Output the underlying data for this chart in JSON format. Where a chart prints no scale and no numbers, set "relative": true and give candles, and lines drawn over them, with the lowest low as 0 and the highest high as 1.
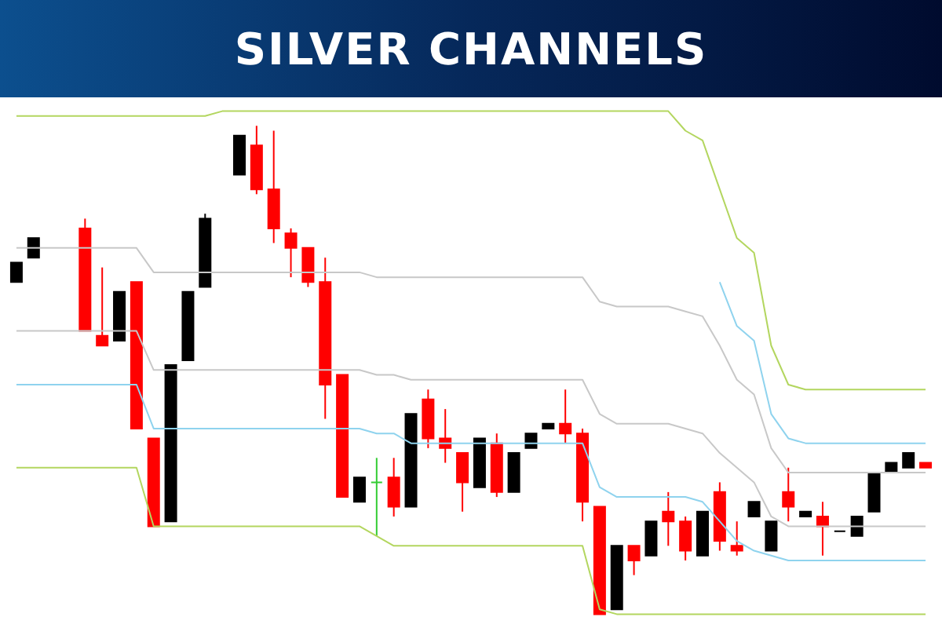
{
  "chart_data": {
    "type": "candlestick",
    "title": "SILVER CHANNELS",
    "relative": true,
    "categories": [
      null,
      null,
      null,
      null,
      null,
      null,
      null,
      null,
      null,
      null,
      null,
      null,
      null,
      null,
      null,
      null,
      null,
      null,
      null,
      null,
      null,
      null,
      null,
      null,
      null,
      null,
      null,
      null,
      null,
      null,
      null,
      null,
      null,
      null,
      null,
      null,
      null,
      null,
      null,
      null,
      null,
      null,
      null,
      null,
      null,
      null,
      null,
      null,
      null,
      null,
      null,
      null,
      null,
      null
    ],
    "ohlc": [
      [
        0.68,
        0.72,
        0.68,
        0.72
      ],
      [
        0.73,
        0.77,
        0.73,
        0.77
      ],
      null,
      null,
      [
        0.79,
        0.81,
        0.58,
        0.58
      ],
      [
        0.57,
        0.71,
        0.55,
        0.55
      ],
      [
        0.56,
        0.66,
        0.56,
        0.66
      ],
      [
        0.68,
        0.68,
        0.38,
        0.38
      ],
      [
        0.36,
        0.36,
        0.18,
        0.18
      ],
      [
        0.19,
        0.51,
        0.19,
        0.51
      ],
      [
        0.52,
        0.66,
        0.52,
        0.66
      ],
      [
        0.67,
        0.82,
        0.67,
        0.81
      ],
      null,
      [
        0.9,
        0.98,
        0.9,
        0.98
      ],
      [
        0.96,
        1.0,
        0.86,
        0.87
      ],
      [
        0.87,
        0.99,
        0.76,
        0.79
      ],
      [
        0.78,
        0.79,
        0.69,
        0.75
      ],
      [
        0.75,
        0.75,
        0.67,
        0.68
      ],
      [
        0.68,
        0.73,
        0.4,
        0.47
      ],
      [
        0.49,
        0.49,
        0.24,
        0.24
      ],
      [
        0.23,
        0.28,
        0.23,
        0.28
      ],
      [
        0.27,
        0.32,
        0.16,
        0.27
      ],
      [
        0.28,
        0.32,
        0.2,
        0.22
      ],
      [
        0.22,
        0.41,
        0.22,
        0.41
      ],
      [
        0.44,
        0.46,
        0.34,
        0.36
      ],
      [
        0.36,
        0.42,
        0.31,
        0.34
      ],
      [
        0.33,
        0.33,
        0.21,
        0.27
      ],
      [
        0.26,
        0.36,
        0.26,
        0.36
      ],
      [
        0.35,
        0.37,
        0.24,
        0.25
      ],
      [
        0.25,
        0.33,
        0.25,
        0.33
      ],
      [
        0.34,
        0.37,
        0.34,
        0.37
      ],
      [
        0.38,
        0.39,
        0.38,
        0.39
      ],
      [
        0.39,
        0.46,
        0.35,
        0.37
      ],
      [
        0.37,
        0.38,
        0.19,
        0.23
      ],
      [
        0.22,
        0.22,
        0.0,
        0.0
      ],
      [
        0.01,
        0.14,
        0.01,
        0.14
      ],
      [
        0.14,
        0.14,
        0.08,
        0.11
      ],
      [
        0.12,
        0.19,
        0.12,
        0.19
      ],
      [
        0.21,
        0.25,
        0.14,
        0.19
      ],
      [
        0.19,
        0.2,
        0.11,
        0.13
      ],
      [
        0.12,
        0.21,
        0.12,
        0.21
      ],
      [
        0.25,
        0.27,
        0.13,
        0.15
      ],
      [
        0.14,
        0.19,
        0.12,
        0.13
      ],
      [
        0.2,
        0.23,
        0.2,
        0.23
      ],
      [
        0.13,
        0.19,
        0.13,
        0.19
      ],
      [
        0.25,
        0.3,
        0.19,
        0.22
      ],
      [
        0.2,
        0.21,
        0.2,
        0.21
      ],
      [
        0.2,
        0.23,
        0.12,
        0.18
      ],
      [
        0.17,
        0.17,
        0.17,
        0.17
      ],
      [
        0.16,
        0.2,
        0.16,
        0.2
      ],
      [
        0.21,
        0.29,
        0.21,
        0.29
      ],
      [
        0.29,
        0.31,
        0.29,
        0.31
      ],
      [
        0.3,
        0.33,
        0.3,
        0.33
      ],
      [
        0.31,
        0.31,
        0.3,
        0.3
      ]
    ],
    "colors": [
      "#000000",
      "#000000",
      null,
      null,
      "#ff0000",
      "#ff0000",
      "#000000",
      "#ff0000",
      "#ff0000",
      "#000000",
      "#000000",
      "#000000",
      null,
      "#000000",
      "#ff0000",
      "#ff0000",
      "#ff0000",
      "#ff0000",
      "#ff0000",
      "#ff0000",
      "#000000",
      "#33cc33",
      "#ff0000",
      "#000000",
      "#ff0000",
      "#ff0000",
      "#ff0000",
      "#000000",
      "#ff0000",
      "#000000",
      "#000000",
      "#000000",
      "#ff0000",
      "#ff0000",
      "#ff0000",
      "#000000",
      "#ff0000",
      "#000000",
      "#ff0000",
      "#ff0000",
      "#000000",
      "#ff0000",
      "#ff0000",
      "#000000",
      "#000000",
      "#ff0000",
      "#000000",
      "#ff0000",
      "#000000",
      "#000000",
      "#000000",
      "#000000",
      "#000000",
      "#ff0000"
    ],
    "series": [
      {
        "type": "line",
        "color": "#b3d65f",
        "values": [
          1.02,
          1.02,
          1.02,
          1.02,
          1.02,
          1.02,
          1.02,
          1.02,
          1.02,
          1.02,
          1.02,
          1.02,
          1.03,
          1.03,
          1.03,
          1.03,
          1.03,
          1.03,
          1.03,
          1.03,
          1.03,
          1.03,
          1.03,
          1.03,
          1.03,
          1.03,
          1.03,
          1.03,
          1.03,
          1.03,
          1.03,
          1.03,
          1.03,
          1.03,
          1.03,
          1.03,
          1.03,
          1.03,
          1.03,
          0.99,
          0.97,
          0.87,
          0.77,
          0.74,
          0.55,
          0.47,
          0.46,
          0.46,
          0.46,
          0.46,
          0.46,
          0.46,
          0.46,
          0.46
        ]
      },
      {
        "type": "line",
        "color": "#8fd3ee",
        "values": [
          null,
          null,
          null,
          null,
          null,
          null,
          null,
          null,
          null,
          null,
          null,
          null,
          null,
          null,
          null,
          null,
          null,
          null,
          null,
          null,
          null,
          null,
          null,
          null,
          null,
          null,
          null,
          null,
          null,
          null,
          null,
          null,
          null,
          null,
          null,
          null,
          null,
          null,
          null,
          null,
          null,
          0.68,
          0.59,
          0.56,
          0.41,
          0.36,
          0.35,
          0.35,
          0.35,
          0.35,
          0.35,
          0.35,
          0.35,
          0.35
        ]
      },
      {
        "type": "line",
        "color": "#c8c8c8",
        "values": [
          0.75,
          0.75,
          0.75,
          0.75,
          0.75,
          0.75,
          0.75,
          0.75,
          0.7,
          0.7,
          0.7,
          0.7,
          0.7,
          0.7,
          0.7,
          0.7,
          0.7,
          0.7,
          0.7,
          0.7,
          0.7,
          0.69,
          0.69,
          0.69,
          0.69,
          0.69,
          0.69,
          0.69,
          0.69,
          0.69,
          0.69,
          0.69,
          0.69,
          0.69,
          0.64,
          0.63,
          0.63,
          0.63,
          0.63,
          0.62,
          0.61,
          0.55,
          0.48,
          0.45,
          0.34,
          0.29,
          0.29,
          0.29,
          0.29,
          0.29,
          0.29,
          0.29,
          0.29,
          0.29
        ]
      },
      {
        "type": "line",
        "color": "#c8c8c8",
        "values": [
          0.58,
          0.58,
          0.58,
          0.58,
          0.58,
          0.58,
          0.58,
          0.58,
          0.5,
          0.5,
          0.5,
          0.5,
          0.5,
          0.5,
          0.5,
          0.5,
          0.5,
          0.5,
          0.5,
          0.5,
          0.5,
          0.49,
          0.49,
          0.48,
          0.48,
          0.48,
          0.48,
          0.48,
          0.48,
          0.48,
          0.48,
          0.48,
          0.48,
          0.48,
          0.41,
          0.39,
          0.39,
          0.39,
          0.39,
          0.38,
          0.37,
          0.33,
          0.3,
          0.27,
          0.2,
          0.18,
          0.18,
          0.18,
          0.18,
          0.18,
          0.18,
          0.18,
          0.18,
          0.18
        ]
      },
      {
        "type": "line",
        "color": "#8fd3ee",
        "values": [
          0.47,
          0.47,
          0.47,
          0.47,
          0.47,
          0.47,
          0.47,
          0.47,
          0.38,
          0.38,
          0.38,
          0.38,
          0.38,
          0.38,
          0.38,
          0.38,
          0.38,
          0.38,
          0.38,
          0.38,
          0.38,
          0.37,
          0.37,
          0.35,
          0.35,
          0.35,
          0.35,
          0.35,
          0.35,
          0.35,
          0.35,
          0.35,
          0.35,
          0.35,
          0.26,
          0.24,
          0.24,
          0.24,
          0.24,
          0.24,
          0.23,
          0.19,
          0.15,
          0.13,
          0.12,
          0.11,
          0.11,
          0.11,
          0.11,
          0.11,
          0.11,
          0.11,
          0.11,
          0.11
        ]
      },
      {
        "type": "line",
        "color": "#b3d65f",
        "values": [
          0.3,
          0.3,
          0.3,
          0.3,
          0.3,
          0.3,
          0.3,
          0.3,
          0.18,
          0.18,
          0.18,
          0.18,
          0.18,
          0.18,
          0.18,
          0.18,
          0.18,
          0.18,
          0.18,
          0.18,
          0.18,
          0.16,
          0.14,
          0.14,
          0.14,
          0.14,
          0.14,
          0.14,
          0.14,
          0.14,
          0.14,
          0.14,
          0.14,
          0.14,
          0.01,
          0.0,
          0.0,
          0.0,
          0.0,
          0.0,
          0.0,
          0.0,
          0.0,
          0.0,
          0.0,
          0.0,
          0.0,
          0.0,
          0.0,
          0.0,
          0.0,
          0.0,
          0.0,
          0.0
        ]
      }
    ]
  }
}
